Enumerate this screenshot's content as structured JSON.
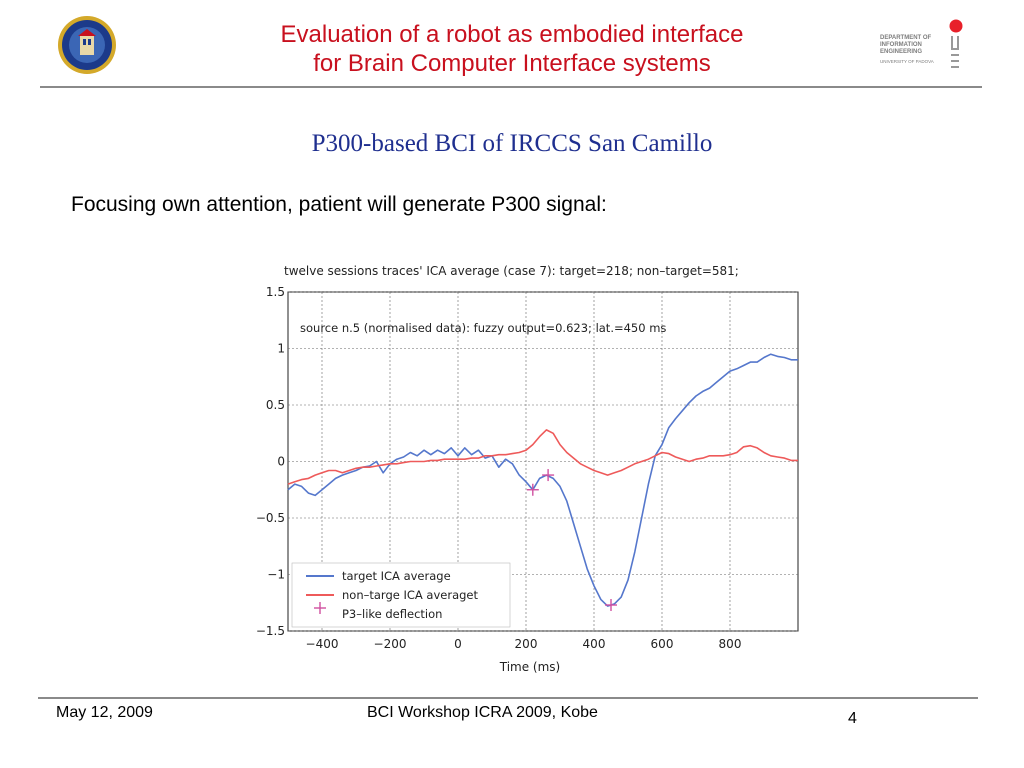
{
  "header": {
    "title_line1": "Evaluation of a robot as embodied interface",
    "title_line2": "for Brain Computer Interface systems",
    "dept_logo": {
      "line1": "DEPARTMENT OF",
      "line2": "INFORMATION",
      "line3": "ENGINEERING",
      "line4": "UNIVERSITY OF PADOVA"
    },
    "seal_icon": "university-seal-icon",
    "accent_color": "#c8101e"
  },
  "subtitle": "P300-based BCI of IRCCS San Camillo",
  "intro": "Focusing own attention, patient will generate P300 signal:",
  "chart_data": {
    "type": "line",
    "title": "twelve sessions traces' ICA average (case 7): target=218; non–target=581;",
    "annotation": "source n.5 (normalised data): fuzzy output=0.623; lat.=450 ms",
    "xlabel": "Time (ms)",
    "ylabel": "",
    "xlim": [
      -500,
      1000
    ],
    "ylim": [
      -1.5,
      1.5
    ],
    "xticks": [
      -400,
      -200,
      0,
      200,
      400,
      600,
      800
    ],
    "xtick_labels": [
      "−400",
      "−200",
      "0",
      "200",
      "400",
      "600",
      "800"
    ],
    "yticks": [
      1.5,
      1,
      0.5,
      0,
      -0.5,
      -1,
      -1.5
    ],
    "ytick_labels": [
      "1.5",
      "1",
      "0.5",
      "0",
      "−0.5",
      "−1",
      "−1.5"
    ],
    "grid": true,
    "legend_position": "bottom-left",
    "series": [
      {
        "name": "target ICA average",
        "color": "#5577cc",
        "x": [
          -500,
          -480,
          -460,
          -440,
          -420,
          -400,
          -380,
          -360,
          -340,
          -320,
          -300,
          -280,
          -260,
          -240,
          -220,
          -200,
          -180,
          -160,
          -140,
          -120,
          -100,
          -80,
          -60,
          -40,
          -20,
          0,
          20,
          40,
          60,
          80,
          100,
          120,
          140,
          160,
          180,
          200,
          220,
          240,
          260,
          280,
          300,
          320,
          340,
          360,
          380,
          400,
          420,
          440,
          460,
          480,
          500,
          520,
          540,
          560,
          580,
          600,
          620,
          640,
          660,
          680,
          700,
          720,
          740,
          760,
          780,
          800,
          820,
          840,
          860,
          880,
          900,
          920,
          940,
          960,
          980,
          1000
        ],
        "y": [
          -0.25,
          -0.2,
          -0.22,
          -0.28,
          -0.3,
          -0.25,
          -0.2,
          -0.15,
          -0.12,
          -0.1,
          -0.08,
          -0.05,
          -0.04,
          0.0,
          -0.1,
          -0.02,
          0.02,
          0.04,
          0.08,
          0.05,
          0.1,
          0.06,
          0.1,
          0.07,
          0.12,
          0.05,
          0.12,
          0.06,
          0.1,
          0.03,
          0.05,
          -0.05,
          0.02,
          -0.02,
          -0.12,
          -0.18,
          -0.25,
          -0.15,
          -0.12,
          -0.15,
          -0.22,
          -0.35,
          -0.55,
          -0.75,
          -0.95,
          -1.1,
          -1.22,
          -1.28,
          -1.26,
          -1.2,
          -1.05,
          -0.8,
          -0.5,
          -0.2,
          0.05,
          0.15,
          0.3,
          0.38,
          0.45,
          0.52,
          0.58,
          0.62,
          0.65,
          0.7,
          0.75,
          0.8,
          0.82,
          0.85,
          0.88,
          0.88,
          0.92,
          0.95,
          0.93,
          0.92,
          0.9,
          0.9
        ]
      },
      {
        "name": "non–targe ICA averaget",
        "color": "#ee5a5a",
        "x": [
          -500,
          -480,
          -460,
          -440,
          -420,
          -400,
          -380,
          -360,
          -340,
          -320,
          -300,
          -280,
          -260,
          -240,
          -220,
          -200,
          -180,
          -160,
          -140,
          -120,
          -100,
          -80,
          -60,
          -40,
          -20,
          0,
          20,
          40,
          60,
          80,
          100,
          120,
          140,
          160,
          180,
          200,
          220,
          240,
          260,
          280,
          300,
          320,
          340,
          360,
          380,
          400,
          420,
          440,
          460,
          480,
          500,
          520,
          540,
          560,
          580,
          600,
          620,
          640,
          660,
          680,
          700,
          720,
          740,
          760,
          780,
          800,
          820,
          840,
          860,
          880,
          900,
          920,
          940,
          960,
          980,
          1000
        ],
        "y": [
          -0.2,
          -0.18,
          -0.16,
          -0.15,
          -0.12,
          -0.1,
          -0.08,
          -0.08,
          -0.1,
          -0.08,
          -0.06,
          -0.05,
          -0.05,
          -0.04,
          -0.03,
          -0.02,
          -0.02,
          -0.01,
          0.0,
          0.0,
          0.0,
          0.01,
          0.01,
          0.02,
          0.02,
          0.02,
          0.02,
          0.03,
          0.03,
          0.05,
          0.05,
          0.06,
          0.06,
          0.07,
          0.08,
          0.1,
          0.15,
          0.22,
          0.28,
          0.25,
          0.15,
          0.08,
          0.03,
          -0.02,
          -0.05,
          -0.08,
          -0.1,
          -0.12,
          -0.1,
          -0.08,
          -0.05,
          -0.02,
          0.0,
          0.02,
          0.05,
          0.08,
          0.07,
          0.04,
          0.02,
          0.0,
          0.02,
          0.03,
          0.05,
          0.05,
          0.05,
          0.06,
          0.08,
          0.13,
          0.14,
          0.12,
          0.08,
          0.05,
          0.04,
          0.03,
          0.01,
          0.01
        ]
      }
    ],
    "markers": {
      "name": "P3–like deflection",
      "color": "#d050a0",
      "points": [
        [
          220,
          -0.25
        ],
        [
          265,
          -0.12
        ],
        [
          450,
          -1.27
        ]
      ]
    }
  },
  "footer": {
    "date": "May 12, 2009",
    "event": "BCI Workshop ICRA 2009, Kobe",
    "page": "4"
  }
}
